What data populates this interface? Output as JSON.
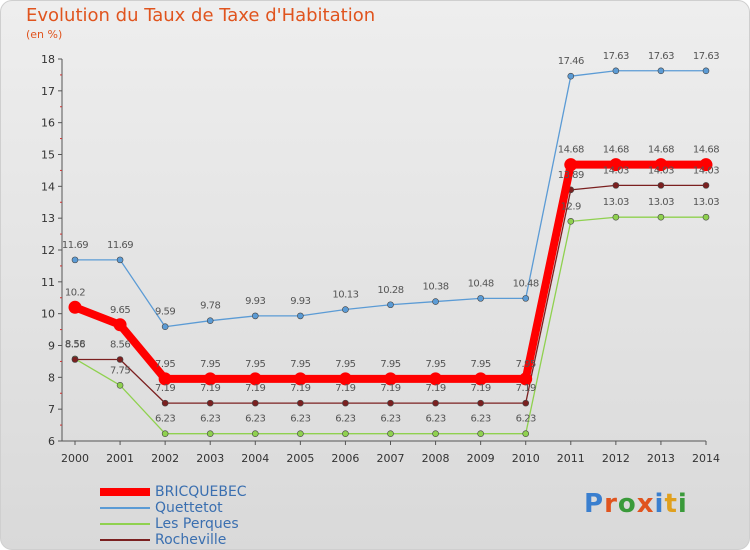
{
  "header": {
    "title": "Evolution du Taux de Taxe d'Habitation",
    "unit": "(en %)"
  },
  "logo": {
    "text": "Proxiti",
    "colors": [
      "#3a7fcf",
      "#e0541e",
      "#3a9a3a",
      "#e0541e",
      "#3a7fcf",
      "#e0a01e",
      "#3a9a3a"
    ]
  },
  "chart_data": {
    "type": "line",
    "x": [
      "2000",
      "2001",
      "2002",
      "2003",
      "2004",
      "2005",
      "2006",
      "2007",
      "2008",
      "2009",
      "2010",
      "2011",
      "2012",
      "2013",
      "2014"
    ],
    "ylim": [
      6,
      18
    ],
    "yticks": [
      6,
      7,
      8,
      9,
      10,
      11,
      12,
      13,
      14,
      15,
      16,
      17,
      18
    ],
    "grid": false,
    "legend_position": "bottom-left",
    "series": [
      {
        "name": "BRICQUEBEC",
        "color": "#ff0000",
        "values": [
          10.2,
          9.65,
          7.95,
          7.95,
          7.95,
          7.95,
          7.95,
          7.95,
          7.95,
          7.95,
          7.95,
          14.68,
          14.68,
          14.68,
          14.68
        ],
        "labels": [
          "10.2",
          "9.65",
          "7.95",
          "7.95",
          "7.95",
          "7.95",
          "7.95",
          "7.95",
          "7.95",
          "7.95",
          "7.95",
          "14.68",
          "14.68",
          "14.68",
          "14.68"
        ]
      },
      {
        "name": "Quettetot",
        "color": "#5b9bd5",
        "values": [
          11.69,
          11.69,
          9.59,
          9.78,
          9.93,
          9.93,
          10.13,
          10.28,
          10.38,
          10.48,
          10.48,
          17.46,
          17.63,
          17.63,
          17.63
        ],
        "labels": [
          "11.69",
          "11.69",
          "9.59",
          "9.78",
          "9.93",
          "9.93",
          "10.13",
          "10.28",
          "10.38",
          "10.48",
          "10.48",
          "17.46",
          "17.63",
          "17.63",
          "17.63"
        ]
      },
      {
        "name": "Les Perques",
        "color": "#8fd14f",
        "values": [
          8.58,
          7.75,
          6.23,
          6.23,
          6.23,
          6.23,
          6.23,
          6.23,
          6.23,
          6.23,
          6.23,
          12.9,
          13.03,
          13.03,
          13.03
        ],
        "labels": [
          "8.58",
          "7.75",
          "6.23",
          "6.23",
          "6.23",
          "6.23",
          "6.23",
          "6.23",
          "6.23",
          "6.23",
          "6.23",
          "12.9",
          "13.03",
          "13.03",
          "13.03"
        ]
      },
      {
        "name": "Rocheville",
        "color": "#7b2020",
        "values": [
          8.56,
          8.56,
          7.19,
          7.19,
          7.19,
          7.19,
          7.19,
          7.19,
          7.19,
          7.19,
          7.19,
          13.89,
          14.03,
          14.03,
          14.03
        ],
        "labels": [
          "8.56",
          "8.56",
          "7.19",
          "7.19",
          "7.19",
          "7.19",
          "7.19",
          "7.19",
          "7.19",
          "7.19",
          "7.19",
          "13.89",
          "14.03",
          "14.03",
          "14.03"
        ]
      }
    ]
  }
}
